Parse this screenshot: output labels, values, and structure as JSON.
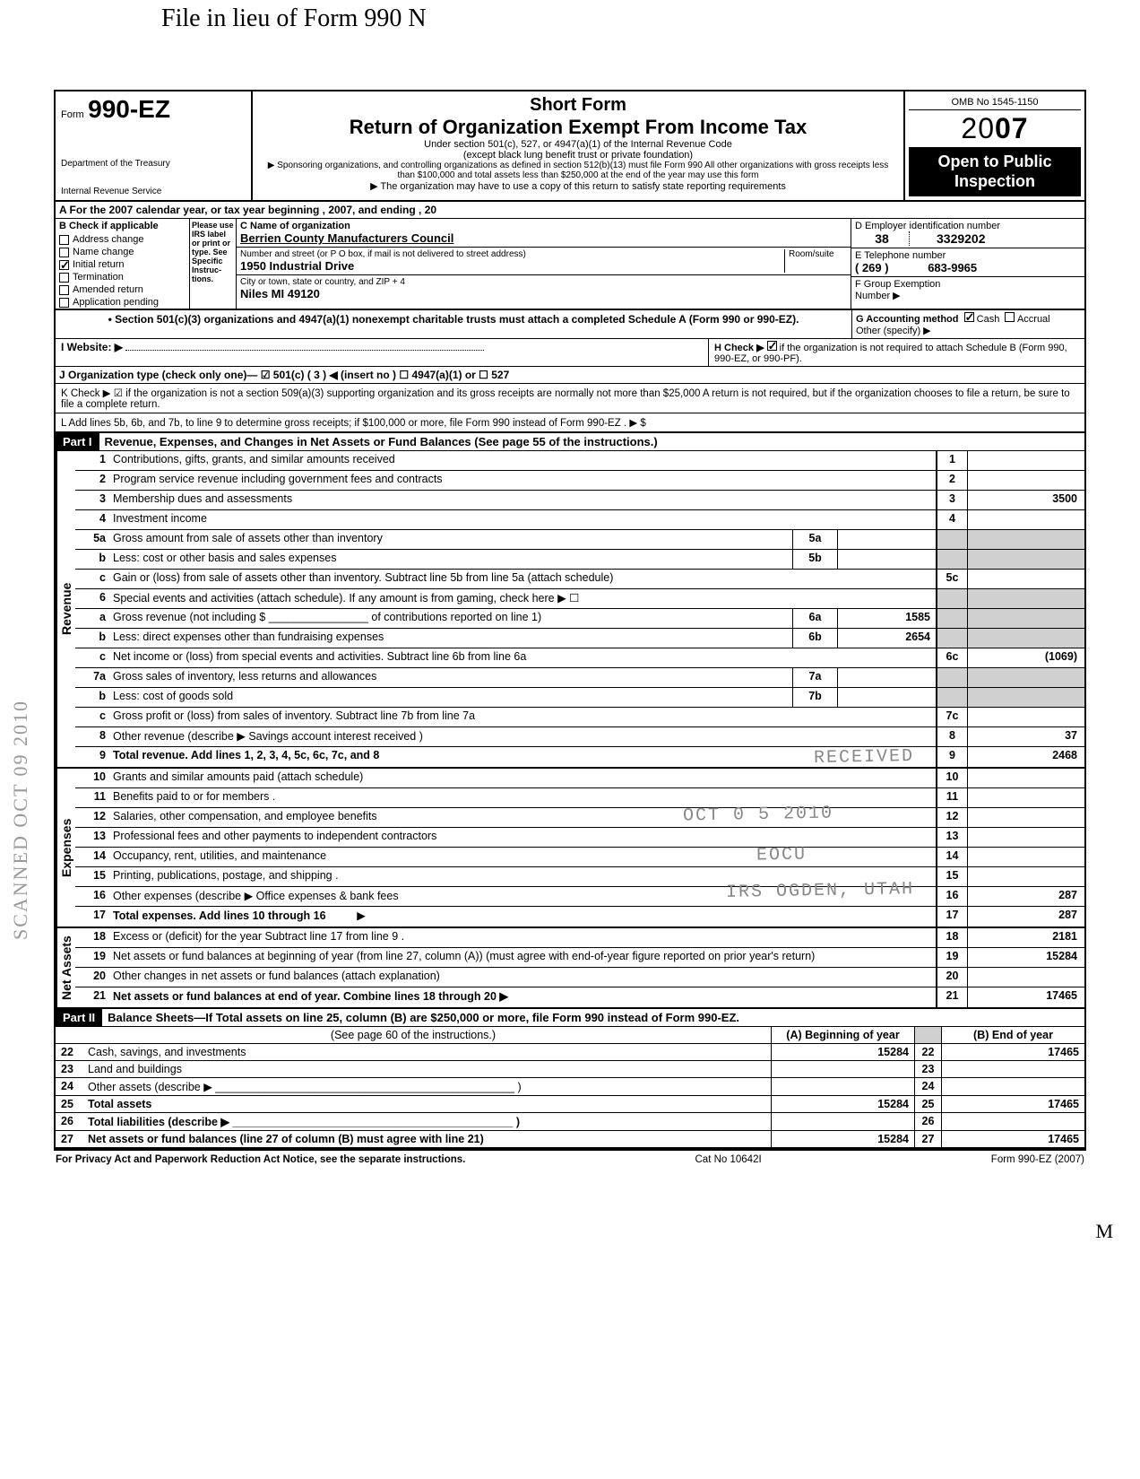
{
  "handwritten_top": "File in lieu of Form 990 N",
  "side_stamp": "SCANNED OCT 09 2010",
  "header": {
    "form_prefix": "Form",
    "form_number": "990-EZ",
    "dept1": "Department of the Treasury",
    "dept2": "Internal Revenue Service",
    "short_form": "Short Form",
    "title": "Return of Organization Exempt From Income Tax",
    "sub1": "Under section 501(c), 527, or 4947(a)(1) of the Internal Revenue Code",
    "sub2": "(except black lung benefit trust or private foundation)",
    "sub3": "▶ Sponsoring organizations, and controlling organizations as defined in section 512(b)(13) must file Form 990  All other organizations with gross receipts less than $100,000 and total assets less than $250,000 at the end of the year may use this form",
    "sub4": "▶ The organization may have to use a copy of this return to satisfy state reporting requirements",
    "omb": "OMB No 1545-1150",
    "year_prefix": "20",
    "year_bold": "07",
    "open1": "Open to Public",
    "open2": "Inspection"
  },
  "line_a": "A For the 2007 calendar year, or tax year beginning                                                           , 2007, and ending                                           , 20",
  "section_b": {
    "header": "B Check if applicable",
    "items": [
      {
        "label": "Address change",
        "checked": false
      },
      {
        "label": "Name change",
        "checked": false
      },
      {
        "label": "Initial return",
        "checked": true
      },
      {
        "label": "Termination",
        "checked": false
      },
      {
        "label": "Amended return",
        "checked": false
      },
      {
        "label": "Application pending",
        "checked": false
      }
    ],
    "instr": "Please use IRS label or print or type. See Specific Instruc-tions.",
    "c_label": "C Name of organization",
    "org": "Berrien County Manufacturers Council",
    "addr_label": "Number and street (or P O  box, if mail is not delivered to street address)",
    "room": "Room/suite",
    "addr": "1950 Industrial Drive",
    "city_label": "City or town, state or country, and ZIP + 4",
    "city": "Niles  MI  49120",
    "d_label": "D Employer identification number",
    "ein1": "38",
    "ein2": "3329202",
    "e_label": "E Telephone number",
    "phone_area": "( 269 )",
    "phone": "683-9965",
    "f_label": "F Group Exemption",
    "f_label2": "Number   ▶"
  },
  "bullet_501": "• Section 501(c)(3) organizations and 4947(a)(1) nonexempt charitable trusts must attach a completed Schedule A (Form 990 or 990-EZ).",
  "g_label": "G  Accounting method",
  "g_cash": "Cash",
  "g_accrual": "Accrual",
  "g_other": "Other (specify) ▶",
  "line_i": {
    "label": "I   Website: ▶",
    "val": ""
  },
  "line_h": {
    "label": "H  Check ▶",
    "rest": "if the organization is not required to attach Schedule B (Form 990, 990-EZ, or 990-PF)."
  },
  "line_j": "J   Organization type (check only one)— ☑ 501(c) ( 3 ) ◀ (insert no )    ☐ 4947(a)(1) or   ☐ 527",
  "line_k": "K  Check ▶ ☑  if the organization is not a section 509(a)(3) supporting organization and its gross receipts are normally not more than $25,000  A return is not required, but if the organization chooses to file a return, be sure to file a complete return.",
  "line_l": "L  Add lines 5b, 6b, and 7b, to line 9 to determine gross receipts; if $100,000 or more, file Form 990 instead of Form 990-EZ .          ▶ $",
  "part1": {
    "label": "Part I",
    "title": "Revenue, Expenses, and Changes in Net Assets or Fund Balances (See page 55 of the instructions.)"
  },
  "revenue_label": "Revenue",
  "expenses_label": "Expenses",
  "netassets_label": "Net Assets",
  "lines": {
    "1": {
      "n": "1",
      "d": "Contributions, gifts, grants, and similar amounts received",
      "v": ""
    },
    "2": {
      "n": "2",
      "d": "Program service revenue including government fees and contracts",
      "v": ""
    },
    "3": {
      "n": "3",
      "d": "Membership dues and assessments",
      "v": "3500"
    },
    "4": {
      "n": "4",
      "d": "Investment income",
      "v": ""
    },
    "5a": {
      "n": "5a",
      "d": "Gross amount from sale of assets other than inventory",
      "box": "5a",
      "bv": ""
    },
    "5b": {
      "n": "b",
      "d": "Less: cost or other basis and sales expenses",
      "box": "5b",
      "bv": ""
    },
    "5c": {
      "n": "c",
      "d": "Gain or (loss) from sale of assets other than inventory. Subtract line 5b from line 5a (attach schedule)",
      "nc": "5c",
      "v": ""
    },
    "6": {
      "n": "6",
      "d": "Special events and activities (attach schedule). If any amount is from gaming, check here  ▶   ☐"
    },
    "6a": {
      "n": "a",
      "d": "Gross revenue (not including $ ________________ of contributions reported on line 1)",
      "box": "6a",
      "bv": "1585"
    },
    "6b": {
      "n": "b",
      "d": "Less: direct expenses other than fundraising expenses",
      "box": "6b",
      "bv": "2654"
    },
    "6c": {
      "n": "c",
      "d": "Net income or (loss) from special events and activities. Subtract line 6b from line 6a",
      "nc": "6c",
      "v": "(1069)"
    },
    "7a": {
      "n": "7a",
      "d": "Gross sales of inventory, less returns and allowances",
      "box": "7a",
      "bv": ""
    },
    "7b": {
      "n": "b",
      "d": "Less: cost of goods sold",
      "box": "7b",
      "bv": ""
    },
    "7c": {
      "n": "c",
      "d": "Gross profit or (loss) from sales of inventory. Subtract line 7b from line 7a",
      "nc": "7c",
      "v": ""
    },
    "8": {
      "n": "8",
      "d": "Other revenue (describe ▶  Savings account interest received                                                                      )",
      "v": "37"
    },
    "9": {
      "n": "9",
      "d": "Total revenue. Add lines 1, 2, 3, 4, 5c, 6c, 7c, and 8",
      "v": "2468"
    },
    "10": {
      "n": "10",
      "d": "Grants and similar amounts paid (attach schedule)",
      "v": ""
    },
    "11": {
      "n": "11",
      "d": "Benefits paid to or for members .",
      "v": ""
    },
    "12": {
      "n": "12",
      "d": "Salaries, other compensation, and employee benefits",
      "v": ""
    },
    "13": {
      "n": "13",
      "d": "Professional fees and other payments to independent contractors",
      "v": ""
    },
    "14": {
      "n": "14",
      "d": "Occupancy, rent, utilities, and maintenance",
      "v": ""
    },
    "15": {
      "n": "15",
      "d": "Printing, publications, postage, and shipping .",
      "v": ""
    },
    "16": {
      "n": "16",
      "d": "Other expenses (describe ▶  Office expenses & bank fees",
      "v": "287"
    },
    "17": {
      "n": "17",
      "d": "Total expenses. Add lines 10 through 16",
      "v": "287"
    },
    "18": {
      "n": "18",
      "d": "Excess or (deficit) for the year  Subtract line 17 from line 9 .",
      "v": "2181"
    },
    "19": {
      "n": "19",
      "d": "Net assets or fund balances at beginning of year (from line 27, column (A)) (must agree with end-of-year figure reported on prior year's return)",
      "v": "15284"
    },
    "20": {
      "n": "20",
      "d": "Other changes in net assets or fund balances (attach explanation)",
      "v": ""
    },
    "21": {
      "n": "21",
      "d": "Net assets or fund balances at end of year. Combine lines 18 through 20                                   ▶",
      "v": "17465"
    }
  },
  "stamps": {
    "received": "RECEIVED",
    "date": "OCT 0 5 2010",
    "eocu": "EOCU",
    "irs": "IRS OGDEN, UTAH"
  },
  "part2": {
    "label": "Part II",
    "title": "Balance Sheets—If Total assets on line 25, column (B) are $250,000 or more, file Form 990 instead of Form 990-EZ.",
    "see": "(See page 60 of the instructions.)",
    "colA": "(A) Beginning of year",
    "colB": "(B) End of year",
    "rows": [
      {
        "n": "22",
        "d": "Cash, savings, and investments",
        "a": "15284",
        "b": "17465"
      },
      {
        "n": "23",
        "d": "Land and buildings",
        "a": "",
        "b": ""
      },
      {
        "n": "24",
        "d": "Other assets (describe ▶ ________________________________________________ )",
        "a": "",
        "b": ""
      },
      {
        "n": "25",
        "d": "Total assets",
        "a": "15284",
        "b": "17465",
        "bold": true
      },
      {
        "n": "26",
        "d": "Total liabilities (describe ▶ _____________________________________________ )",
        "a": "",
        "b": "",
        "bold": true
      },
      {
        "n": "27",
        "d": "Net assets or fund balances (line 27 of column (B) must agree with line 21)",
        "a": "15284",
        "b": "17465",
        "bold": true
      }
    ]
  },
  "footer": {
    "left": "For Privacy Act and Paperwork Reduction Act Notice, see the separate instructions.",
    "mid": "Cat  No  10642I",
    "right": "Form 990-EZ (2007)"
  },
  "hand_ann": {
    "a": "M",
    "b": ""
  }
}
